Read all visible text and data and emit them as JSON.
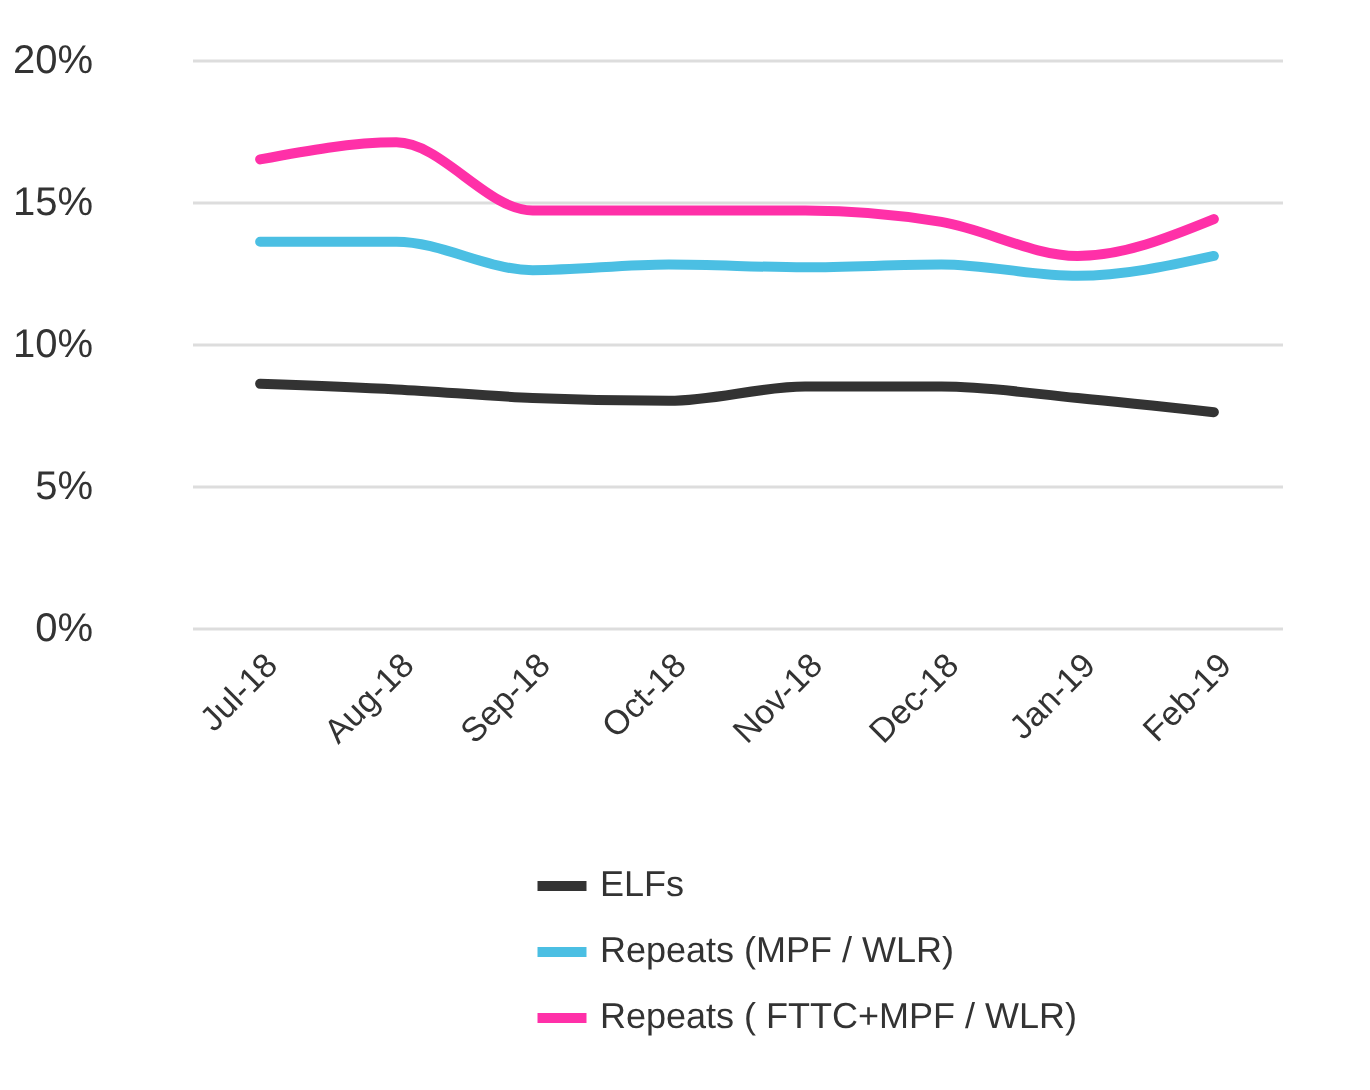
{
  "chart_data": {
    "type": "line",
    "categories": [
      "Jul-18",
      "Aug-18",
      "Sep-18",
      "Oct-18",
      "Nov-18",
      "Dec-18",
      "Jan-19",
      "Feb-19"
    ],
    "series": [
      {
        "name": "ELFs",
        "color": "#333333",
        "values": [
          8.6,
          8.4,
          8.1,
          8.0,
          8.5,
          8.5,
          8.1,
          7.6
        ]
      },
      {
        "name": "Repeats (MPF / WLR)",
        "color": "#4bbfe3",
        "values": [
          13.6,
          13.6,
          12.6,
          12.8,
          12.7,
          12.8,
          12.4,
          13.1
        ]
      },
      {
        "name": "Repeats ( FTTC+MPF / WLR)",
        "color": "#ff30a8",
        "values": [
          16.5,
          17.1,
          14.7,
          14.7,
          14.7,
          14.3,
          13.1,
          14.4
        ]
      }
    ],
    "ylim": [
      0,
      20
    ],
    "yticks": [
      {
        "value": 0,
        "label": "0%"
      },
      {
        "value": 5,
        "label": "5%"
      },
      {
        "value": 10,
        "label": "10%"
      },
      {
        "value": 15,
        "label": "15%"
      },
      {
        "value": 20,
        "label": "20%"
      }
    ],
    "grid": "y",
    "legend": "bottom",
    "marker": "none",
    "line_style": "solid"
  }
}
